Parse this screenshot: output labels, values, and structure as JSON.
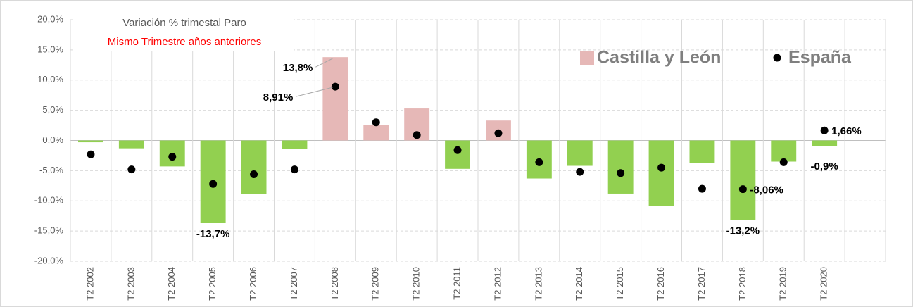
{
  "chart_data": {
    "type": "bar",
    "title": "Variación % trimestal Paro",
    "subtitle": "Mismo Trimestre años anteriores",
    "categories": [
      "T2 2002",
      "T2 2003",
      "T2 2004",
      "T2 2005",
      "T2 2006",
      "T2 2007",
      "T2 2008",
      "T2 2009",
      "T2 2010",
      "T2 2011",
      "T2 2012",
      "T2 2013",
      "T2 2014",
      "T2 2015",
      "T2 2016",
      "T2 2017",
      "T2 2018",
      "T2 2019",
      "T2 2020",
      null
    ],
    "series": [
      {
        "name": "Castilla y León",
        "type": "bar",
        "color": "#e6b8b7",
        "colors": [
          "#92d050",
          "#92d050",
          "#92d050",
          "#92d050",
          "#92d050",
          "#92d050",
          "#e6b8b7",
          "#e6b8b7",
          "#e6b8b7",
          "#92d050",
          "#e6b8b7",
          "#92d050",
          "#92d050",
          "#92d050",
          "#92d050",
          "#92d050",
          "#92d050",
          "#92d050",
          "#92d050",
          null
        ],
        "values": [
          -0.3,
          -1.3,
          -4.3,
          -13.7,
          -8.9,
          -1.4,
          13.8,
          2.6,
          5.3,
          -4.7,
          3.3,
          -6.3,
          -4.2,
          -8.8,
          -10.9,
          -3.7,
          -13.2,
          -3.5,
          -0.9,
          null
        ],
        "value_labels": [
          null,
          null,
          null,
          "-13,7%",
          null,
          null,
          "13,8%",
          null,
          null,
          null,
          null,
          null,
          null,
          null,
          null,
          null,
          "-13,2%",
          null,
          "-0,9%",
          null
        ]
      },
      {
        "name": "España",
        "type": "scatter",
        "color": "#000000",
        "values": [
          -2.3,
          -4.8,
          -2.7,
          -7.2,
          -5.6,
          -4.8,
          8.91,
          3.0,
          0.9,
          -1.6,
          1.2,
          -3.6,
          -5.2,
          -5.4,
          -4.5,
          -8.0,
          -8.06,
          -3.6,
          1.66,
          null
        ],
        "value_labels": [
          null,
          null,
          null,
          null,
          null,
          null,
          "8,91%",
          null,
          null,
          null,
          null,
          null,
          null,
          null,
          null,
          null,
          "-8,06%",
          null,
          "1,66%",
          null
        ]
      }
    ],
    "ylim": [
      -20,
      20
    ],
    "yticks": [
      {
        "value": -20,
        "label": "-20,0%"
      },
      {
        "value": -15,
        "label": "-15,0%"
      },
      {
        "value": -10,
        "label": "-10,0%"
      },
      {
        "value": -5,
        "label": "-5,0%"
      },
      {
        "value": 0,
        "label": "0,0%"
      },
      {
        "value": 5,
        "label": "5,0%"
      },
      {
        "value": 10,
        "label": "10,0%"
      },
      {
        "value": 15,
        "label": "15,0%"
      },
      {
        "value": 20,
        "label": "20,0%"
      }
    ],
    "grid": true,
    "legend": "top-right"
  }
}
